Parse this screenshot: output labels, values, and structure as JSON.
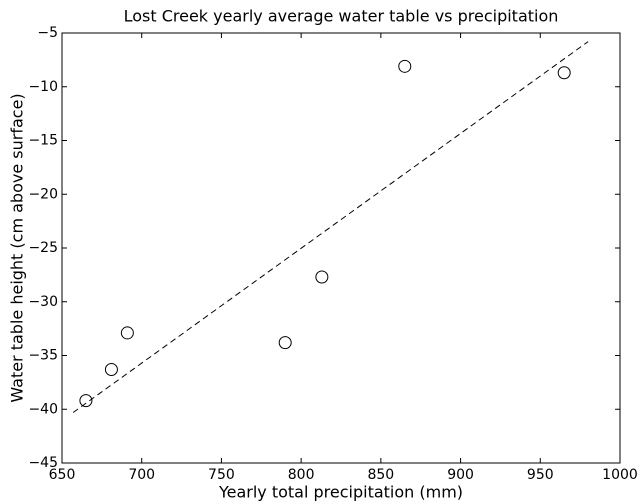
{
  "chart_data": {
    "type": "scatter",
    "title": "Lost Creek yearly average water table vs precipitation",
    "xlabel": "Yearly total precipitation (mm)",
    "ylabel": "Water table height (cm above surface)",
    "x": [
      665,
      681,
      691,
      790,
      813,
      865,
      965
    ],
    "y": [
      -39.2,
      -36.3,
      -32.9,
      -33.8,
      -27.7,
      -8.1,
      -8.7
    ],
    "color": "#000000",
    "fit_line": {
      "x": [
        657,
        980
      ],
      "y": [
        -40.3,
        -5.8
      ]
    },
    "xlim": [
      650,
      1000
    ],
    "xticks": [
      650,
      700,
      750,
      800,
      850,
      900,
      950,
      1000
    ],
    "ylim": [
      -45,
      -5
    ],
    "yticks": [
      {
        "value": -45,
        "label": "−45"
      },
      {
        "value": -40,
        "label": "−40"
      },
      {
        "value": -35,
        "label": "−35"
      },
      {
        "value": -30,
        "label": "−30"
      },
      {
        "value": -25,
        "label": "−25"
      },
      {
        "value": -20,
        "label": "−20"
      },
      {
        "value": -15,
        "label": "−15"
      },
      {
        "value": -10,
        "label": "−10"
      },
      {
        "value": -5,
        "label": "−5"
      }
    ]
  }
}
